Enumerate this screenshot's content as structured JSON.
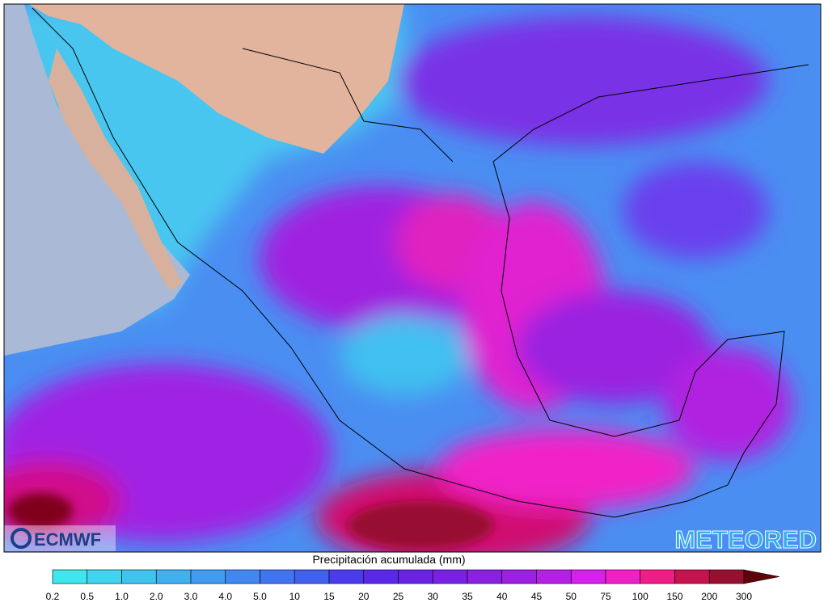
{
  "logos": {
    "left": "ECMWF",
    "right": "METEORED"
  },
  "legend": {
    "title": "Precipitación acumulada (mm)",
    "labels": [
      "0.2",
      "0.5",
      "1.0",
      "2.0",
      "3.0",
      "4.0",
      "5.0",
      "10",
      "15",
      "20",
      "25",
      "30",
      "35",
      "40",
      "45",
      "50",
      "75",
      "100",
      "150",
      "200",
      "300"
    ],
    "colors": [
      "#3ee6ee",
      "#3fd4f0",
      "#3fc4f0",
      "#40b0f0",
      "#409cf0",
      "#4088f0",
      "#4074f0",
      "#4060ee",
      "#4a3cee",
      "#5a28ea",
      "#6a22e6",
      "#7a20e4",
      "#8c20e2",
      "#9e20e2",
      "#b620e6",
      "#d820ee",
      "#f020c8",
      "#ee1e86",
      "#c8124e",
      "#981030"
    ],
    "arrow_color": "#600008"
  }
}
